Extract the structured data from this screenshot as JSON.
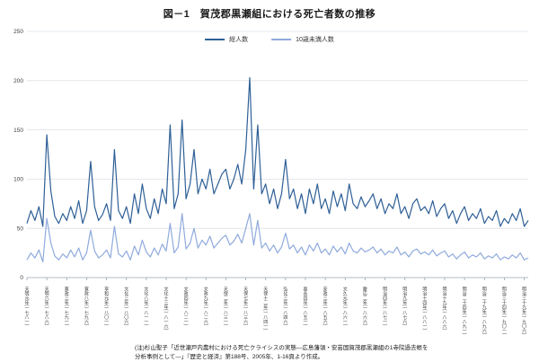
{
  "title": "図－1　賀茂郡黒瀬組における死亡者数の推移",
  "note": "(注)杉山聖子「近世瀬戸内農村における死亡クライシスの実態―広島藩領・安芸国賀茂郡黒瀬組の1寺院過去帳を分析事例として―」『歴史と経済』第188号、2005年、1-16頁より作成。",
  "chart_data": {
    "type": "line",
    "title": "図－1　賀茂郡黒瀬組における死亡者数の推移",
    "xlabel": "",
    "ylabel": "",
    "x_start_year": 1781,
    "x_end_year": 1907,
    "ylim": [
      0,
      250
    ],
    "y_ticks": [
      0,
      50,
      100,
      150,
      200,
      250
    ],
    "grid": true,
    "legend_position": "top-center",
    "series": [
      {
        "key": "total-line",
        "name": "総人数",
        "color": "#2e5f96",
        "values": [
          55,
          68,
          58,
          72,
          52,
          145,
          88,
          62,
          55,
          65,
          58,
          72,
          60,
          78,
          55,
          68,
          118,
          72,
          58,
          64,
          75,
          58,
          130,
          68,
          60,
          72,
          55,
          85,
          65,
          95,
          70,
          60,
          80,
          65,
          90,
          75,
          155,
          70,
          85,
          160,
          80,
          95,
          130,
          85,
          100,
          90,
          110,
          85,
          95,
          105,
          110,
          90,
          100,
          115,
          95,
          130,
          203,
          90,
          155,
          85,
          95,
          75,
          90,
          70,
          85,
          120,
          80,
          90,
          70,
          85,
          65,
          90,
          75,
          95,
          70,
          80,
          65,
          88,
          72,
          85,
          68,
          95,
          75,
          70,
          82,
          72,
          78,
          85,
          70,
          80,
          65,
          75,
          70,
          85,
          65,
          72,
          60,
          75,
          80,
          68,
          72,
          65,
          78,
          62,
          70,
          75,
          60,
          68,
          55,
          65,
          72,
          58,
          65,
          60,
          70,
          55,
          62,
          58,
          68,
          52,
          60,
          55,
          65,
          58,
          70,
          52,
          58
        ]
      },
      {
        "key": "under10-line",
        "name": "10歳未満人数",
        "color": "#8faadc",
        "values": [
          18,
          25,
          20,
          28,
          16,
          60,
          35,
          22,
          18,
          24,
          20,
          28,
          21,
          30,
          18,
          25,
          48,
          27,
          20,
          23,
          28,
          20,
          52,
          24,
          21,
          27,
          18,
          32,
          23,
          38,
          26,
          21,
          30,
          23,
          34,
          27,
          55,
          25,
          31,
          65,
          29,
          35,
          50,
          30,
          38,
          33,
          42,
          30,
          35,
          40,
          43,
          33,
          37,
          44,
          35,
          50,
          65,
          33,
          58,
          30,
          35,
          27,
          33,
          25,
          31,
          45,
          29,
          33,
          25,
          31,
          23,
          33,
          27,
          35,
          25,
          29,
          23,
          32,
          26,
          31,
          24,
          35,
          27,
          25,
          30,
          26,
          28,
          31,
          25,
          29,
          23,
          27,
          25,
          31,
          23,
          26,
          21,
          27,
          29,
          24,
          26,
          23,
          28,
          22,
          25,
          27,
          21,
          24,
          19,
          23,
          26,
          20,
          23,
          21,
          25,
          19,
          22,
          20,
          24,
          18,
          21,
          19,
          23,
          20,
          25,
          18,
          20
        ]
      }
    ],
    "x_tick_labels": [
      {
        "year": 1781,
        "label": "天明元年(一七八一)"
      },
      {
        "year": 1786,
        "label": "天明六年(一七八六)"
      },
      {
        "year": 1791,
        "label": "寛政三年(一七九一)"
      },
      {
        "year": 1796,
        "label": "寛政八年(一七九六)"
      },
      {
        "year": 1801,
        "label": "享和元年(一八〇一)"
      },
      {
        "year": 1806,
        "label": "文化三年(一八〇六)"
      },
      {
        "year": 1811,
        "label": "文化八年(一八一一)"
      },
      {
        "year": 1816,
        "label": "文化十三年(一八一六)"
      },
      {
        "year": 1821,
        "label": "文政四年(一八二一)"
      },
      {
        "year": 1826,
        "label": "文政九年(一八二六)"
      },
      {
        "year": 1831,
        "label": "天保二年(一八三一)"
      },
      {
        "year": 1836,
        "label": "天保七年(一八三六)"
      },
      {
        "year": 1841,
        "label": "天保十二年(一八四一)"
      },
      {
        "year": 1846,
        "label": "弘化三年(一八四六)"
      },
      {
        "year": 1851,
        "label": "嘉永四年(一八五一)"
      },
      {
        "year": 1856,
        "label": "安政三年(一八五六)"
      },
      {
        "year": 1861,
        "label": "文久元年(一八六一)"
      },
      {
        "year": 1866,
        "label": "慶応二年(一八六六)"
      },
      {
        "year": 1871,
        "label": "明治四年(一八七一)"
      },
      {
        "year": 1876,
        "label": "明治九年(一八七六)"
      },
      {
        "year": 1881,
        "label": "明治十四年(一八八一)"
      },
      {
        "year": 1886,
        "label": "明治十九年(一八八六)"
      },
      {
        "year": 1891,
        "label": "明治二十四年(一八九一)"
      },
      {
        "year": 1896,
        "label": "明治二十九年(一八九六)"
      },
      {
        "year": 1901,
        "label": "明治三十四年(一九〇一)"
      },
      {
        "year": 1906,
        "label": "明治三十九年(一九〇六)"
      }
    ]
  }
}
